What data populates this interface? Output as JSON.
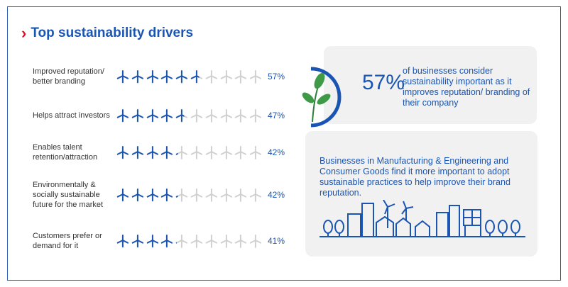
{
  "title": "Top sustainability drivers",
  "chart_data": {
    "type": "pictograph",
    "title": "Top sustainability drivers",
    "unit": "%",
    "icons_per_row": 10,
    "categories": [
      "Improved reputation/ better branding",
      "Helps attract investors",
      "Enables talent retention/attraction",
      "Environmentally & socially sustainable future for the market",
      "Customers prefer or demand for it"
    ],
    "values": [
      57,
      47,
      42,
      42,
      41
    ],
    "labels": [
      "57%",
      "47%",
      "42%",
      "42%",
      "41%"
    ]
  },
  "highlight": {
    "value": "57%",
    "text": "of businesses consider sustainability important as it improves reputation/ branding of their company"
  },
  "insight": "Businesses in Manufacturing & Engineering and Consumer Goods find it more important to adopt sustainable practices to help improve their brand reputation.",
  "colors": {
    "accent": "#1a55b4",
    "inactive": "#d0d0d0",
    "chevron": "#e0102a"
  }
}
